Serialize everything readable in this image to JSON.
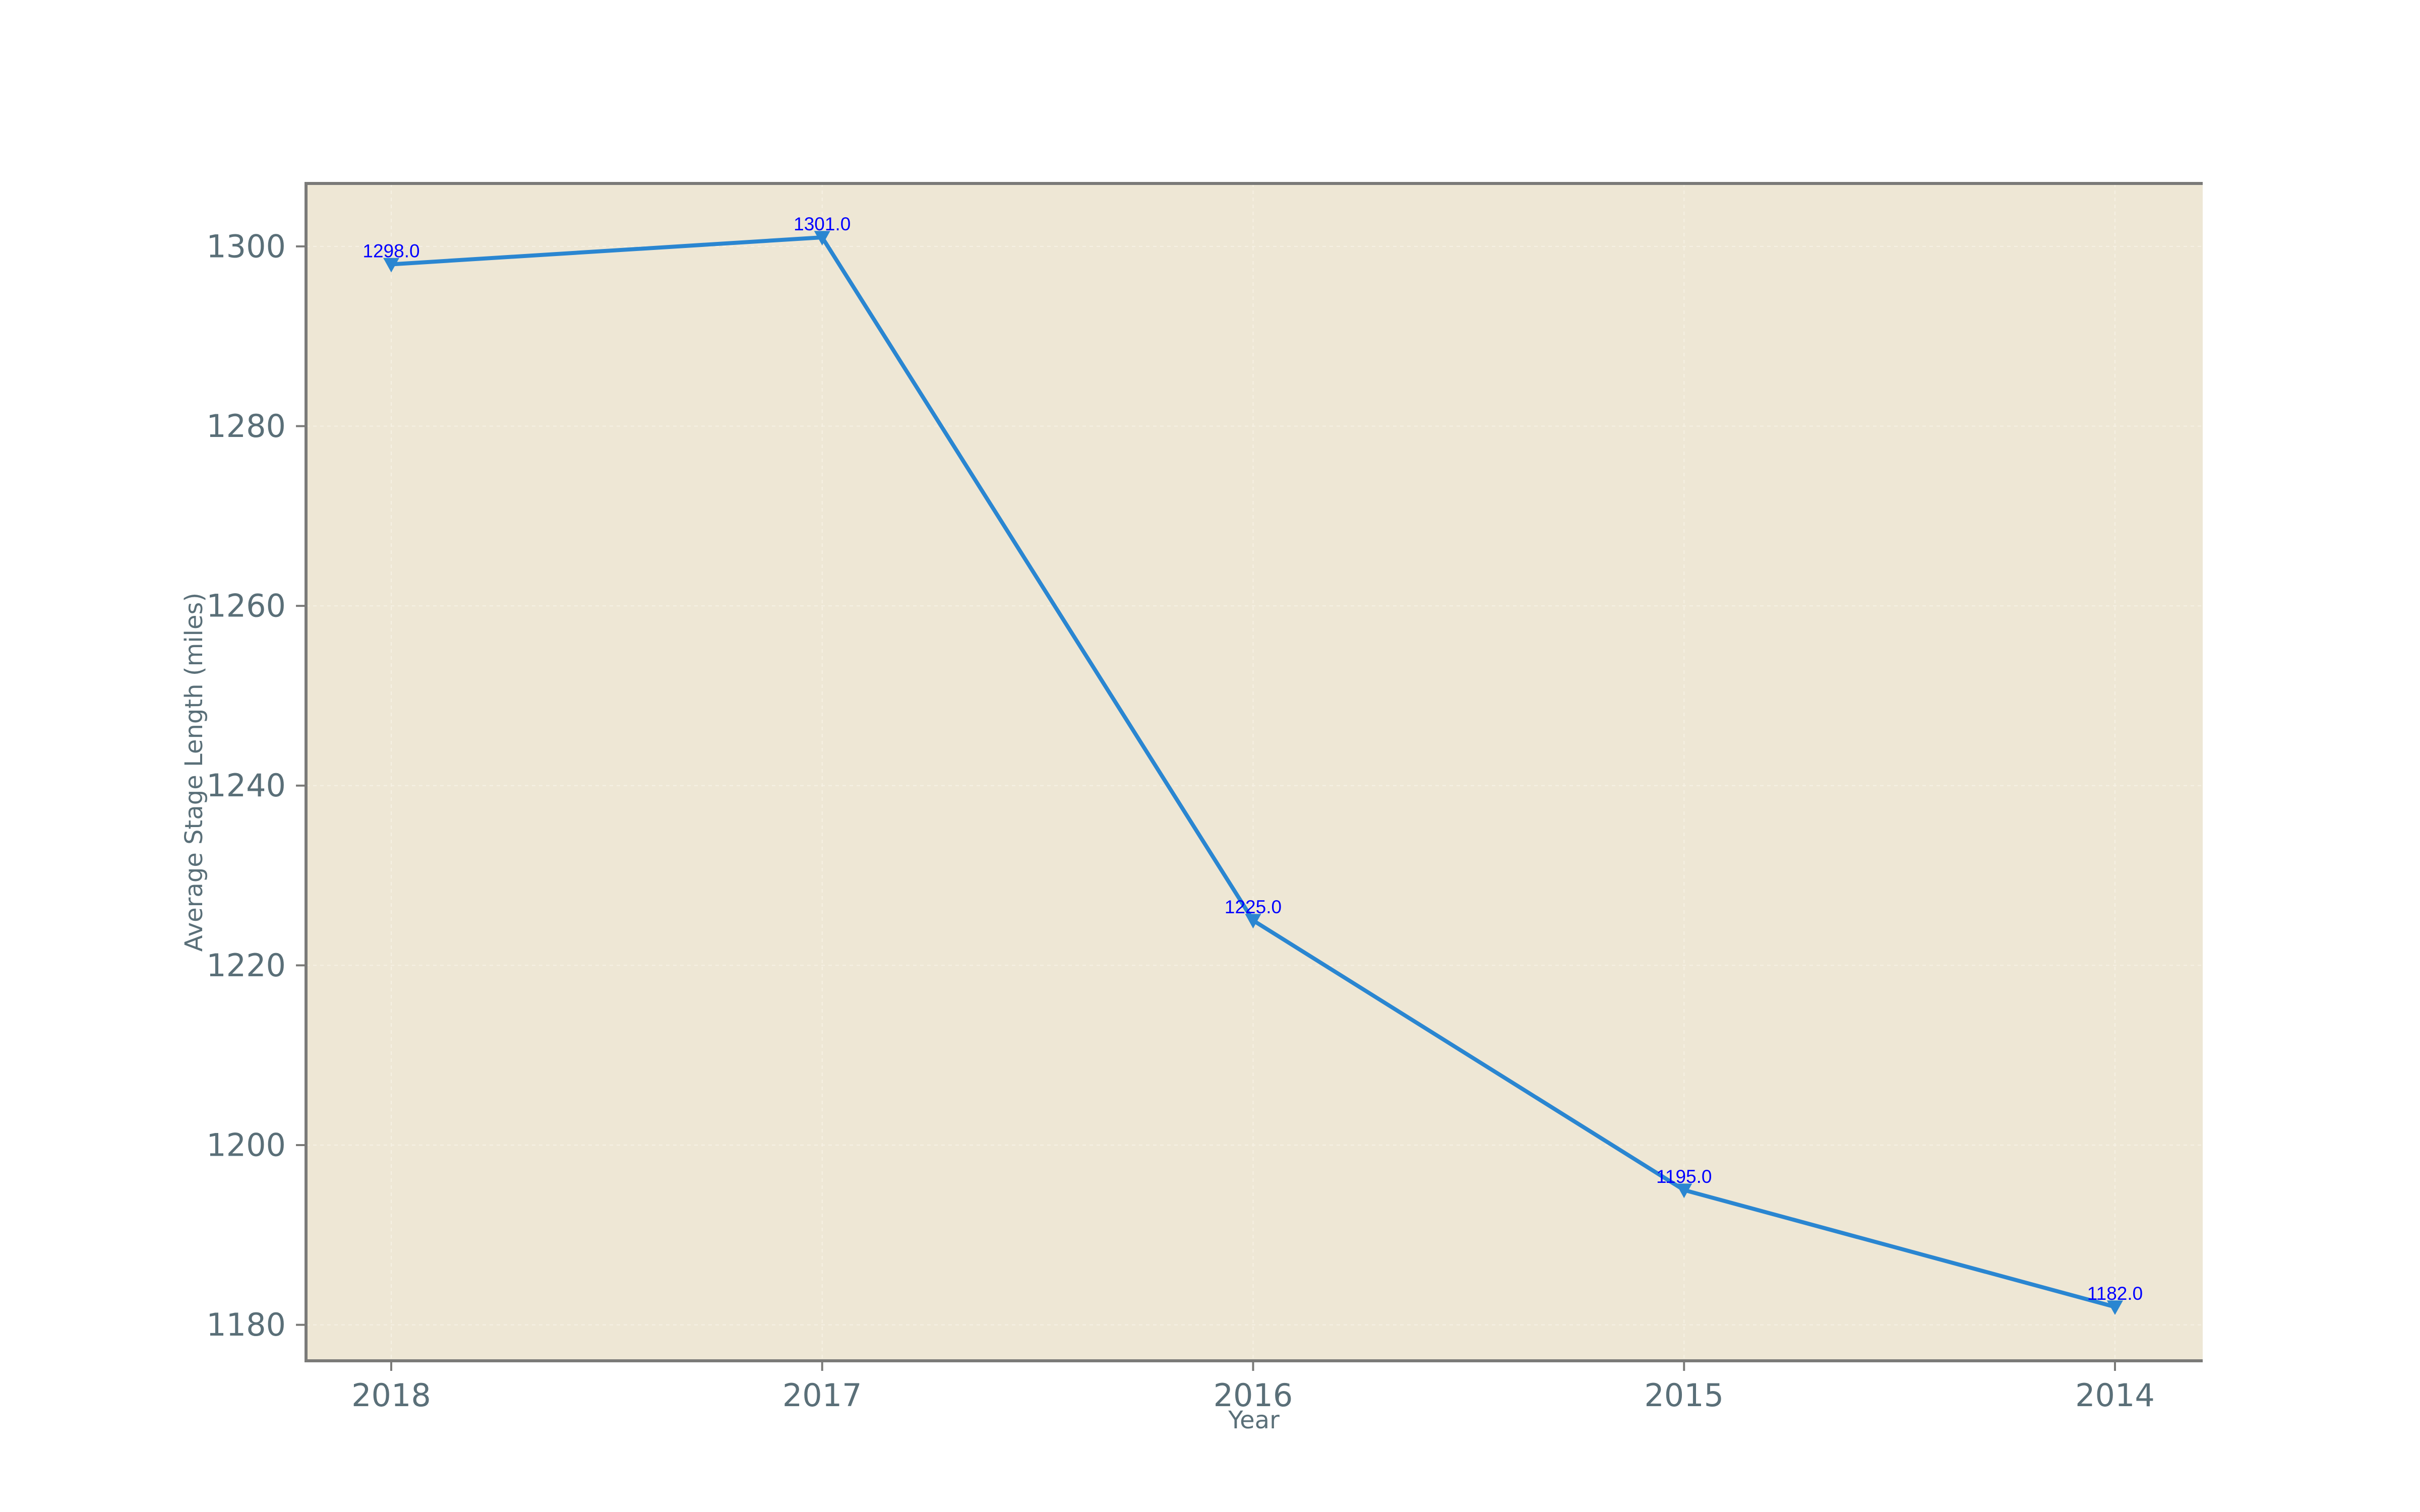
{
  "chart_data": {
    "type": "line",
    "xlabel": "Year",
    "ylabel": "Average Stage Length (miles)",
    "categories": [
      "2018",
      "2017",
      "2016",
      "2015",
      "2014"
    ],
    "series": [
      {
        "values": [
          1298.0,
          1301.0,
          1225.0,
          1195.0,
          1182.0
        ],
        "data_labels": [
          "1298.0",
          "1301.0",
          "1225.0",
          "1195.0",
          "1182.0"
        ]
      }
    ],
    "ylim": [
      1176,
      1307
    ],
    "yticks": [
      1180,
      1200,
      1220,
      1240,
      1260,
      1280,
      1300
    ],
    "ytick_labels": [
      "1180",
      "1200",
      "1220",
      "1240",
      "1260",
      "1280",
      "1300"
    ],
    "grid": true,
    "marker": "triangle-down",
    "colors": {
      "line": "#2a86d1",
      "marker": "#2a86d1",
      "data_label": "#0000ff",
      "plot_background": "#eee7d5",
      "axis_frame": "#7a7a78",
      "text": "#5a6f78",
      "grid": "#f6f1e4"
    }
  }
}
